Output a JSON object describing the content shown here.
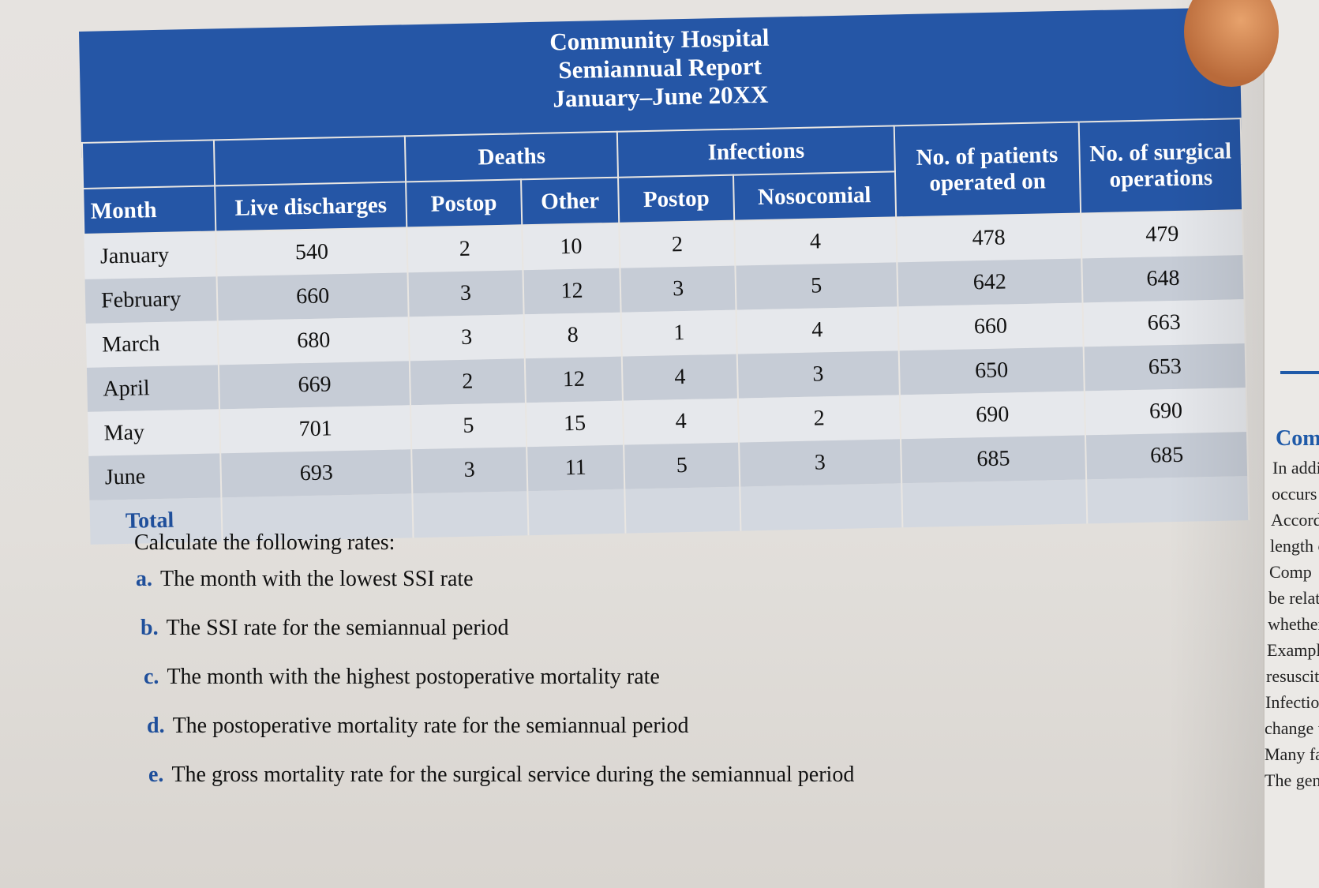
{
  "report": {
    "title_line1": "Community Hospital",
    "title_line2": "Semiannual Report",
    "title_line3": "January–June 20XX"
  },
  "table": {
    "group_headers": {
      "deaths": "Deaths",
      "infections": "Infections",
      "patients_operated": "No. of patients operated on",
      "surgical_operations": "No. of surgical operations"
    },
    "columns": [
      "Month",
      "Live discharges",
      "Postop",
      "Other",
      "Postop",
      "Nosocomial"
    ],
    "rows": [
      {
        "month": "January",
        "live": "540",
        "d_postop": "2",
        "d_other": "10",
        "i_postop": "2",
        "i_noso": "4",
        "patients": "478",
        "ops": "479"
      },
      {
        "month": "February",
        "live": "660",
        "d_postop": "3",
        "d_other": "12",
        "i_postop": "3",
        "i_noso": "5",
        "patients": "642",
        "ops": "648"
      },
      {
        "month": "March",
        "live": "680",
        "d_postop": "3",
        "d_other": "8",
        "i_postop": "1",
        "i_noso": "4",
        "patients": "660",
        "ops": "663"
      },
      {
        "month": "April",
        "live": "669",
        "d_postop": "2",
        "d_other": "12",
        "i_postop": "4",
        "i_noso": "3",
        "patients": "650",
        "ops": "653"
      },
      {
        "month": "May",
        "live": "701",
        "d_postop": "5",
        "d_other": "15",
        "i_postop": "4",
        "i_noso": "2",
        "patients": "690",
        "ops": "690"
      },
      {
        "month": "June",
        "live": "693",
        "d_postop": "3",
        "d_other": "11",
        "i_postop": "5",
        "i_noso": "3",
        "patients": "685",
        "ops": "685"
      }
    ],
    "total_label": "Total"
  },
  "questions": {
    "intro": "Calculate the following rates:",
    "items": [
      {
        "letter": "a.",
        "text": "The month with the lowest SSI rate"
      },
      {
        "letter": "b.",
        "text": "The SSI rate for the semiannual period"
      },
      {
        "letter": "c.",
        "text": "The month with the highest postoperative mortality rate"
      },
      {
        "letter": "d.",
        "text": "The postoperative mortality rate for the semiannual period"
      },
      {
        "letter": "e.",
        "text": "The gross mortality rate for the surgical service during the semiannual period"
      }
    ]
  },
  "right_page": {
    "heading": "Comp",
    "lines": [
      "In additi",
      "occurs du",
      "Accordin",
      "length of s",
      "Comp",
      "be related",
      "whether cha",
      "Exampl",
      "resuscitation",
      "Infections, of",
      "change the wa",
      "Many faci",
      "The gener"
    ]
  },
  "colors": {
    "header_blue": "#2556a6",
    "accent_blue": "#1f4f9b"
  }
}
